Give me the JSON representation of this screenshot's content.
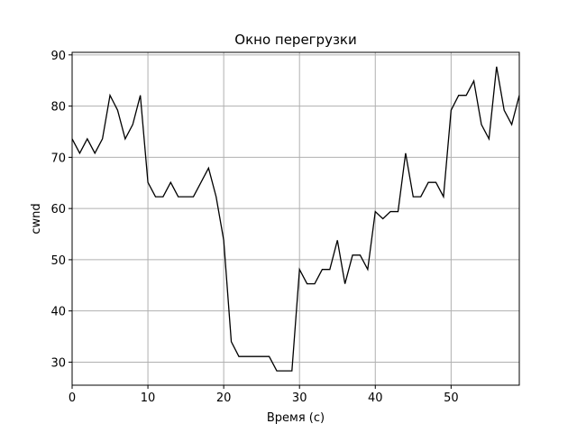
{
  "chart_data": {
    "type": "line",
    "title": "Окно перегрузки",
    "xlabel": "Время (с)",
    "ylabel": "cwnd",
    "xlim": [
      0,
      59
    ],
    "ylim": [
      25.5,
      90.5
    ],
    "xticks": [
      0,
      10,
      20,
      30,
      40,
      50
    ],
    "yticks": [
      30,
      40,
      50,
      60,
      70,
      80,
      90
    ],
    "grid": true,
    "line_color": "#000000",
    "grid_color": "#b0b0b0",
    "series": [
      {
        "x": [
          0,
          1,
          2,
          3,
          4,
          5,
          6,
          7,
          8,
          9,
          10,
          11,
          12,
          13,
          14,
          15,
          16,
          17,
          18,
          19,
          20,
          21,
          22,
          23,
          24,
          25,
          26,
          27,
          28,
          29,
          30,
          31,
          32,
          33,
          34,
          35,
          36,
          37,
          38,
          39,
          40,
          41,
          42,
          43,
          44,
          45,
          46,
          47,
          48,
          49,
          50,
          51,
          52,
          53,
          54,
          55,
          56,
          57,
          58,
          59
        ],
        "values": [
          73.6,
          70.8,
          73.6,
          70.8,
          73.6,
          82.1,
          79.2,
          73.6,
          76.4,
          82.1,
          65.1,
          62.3,
          62.3,
          65.1,
          62.3,
          62.3,
          62.3,
          65.1,
          67.9,
          62.3,
          53.8,
          34.0,
          31.1,
          31.1,
          31.1,
          31.1,
          31.1,
          28.3,
          28.3,
          28.3,
          48.1,
          45.3,
          45.3,
          48.1,
          48.1,
          53.8,
          45.3,
          50.9,
          50.9,
          48.1,
          59.4,
          58.0,
          59.4,
          59.4,
          70.8,
          62.3,
          62.3,
          65.1,
          65.1,
          62.3,
          79.2,
          82.1,
          82.1,
          84.9,
          76.4,
          73.6,
          87.7,
          79.2,
          76.4,
          82.1
        ]
      }
    ]
  }
}
